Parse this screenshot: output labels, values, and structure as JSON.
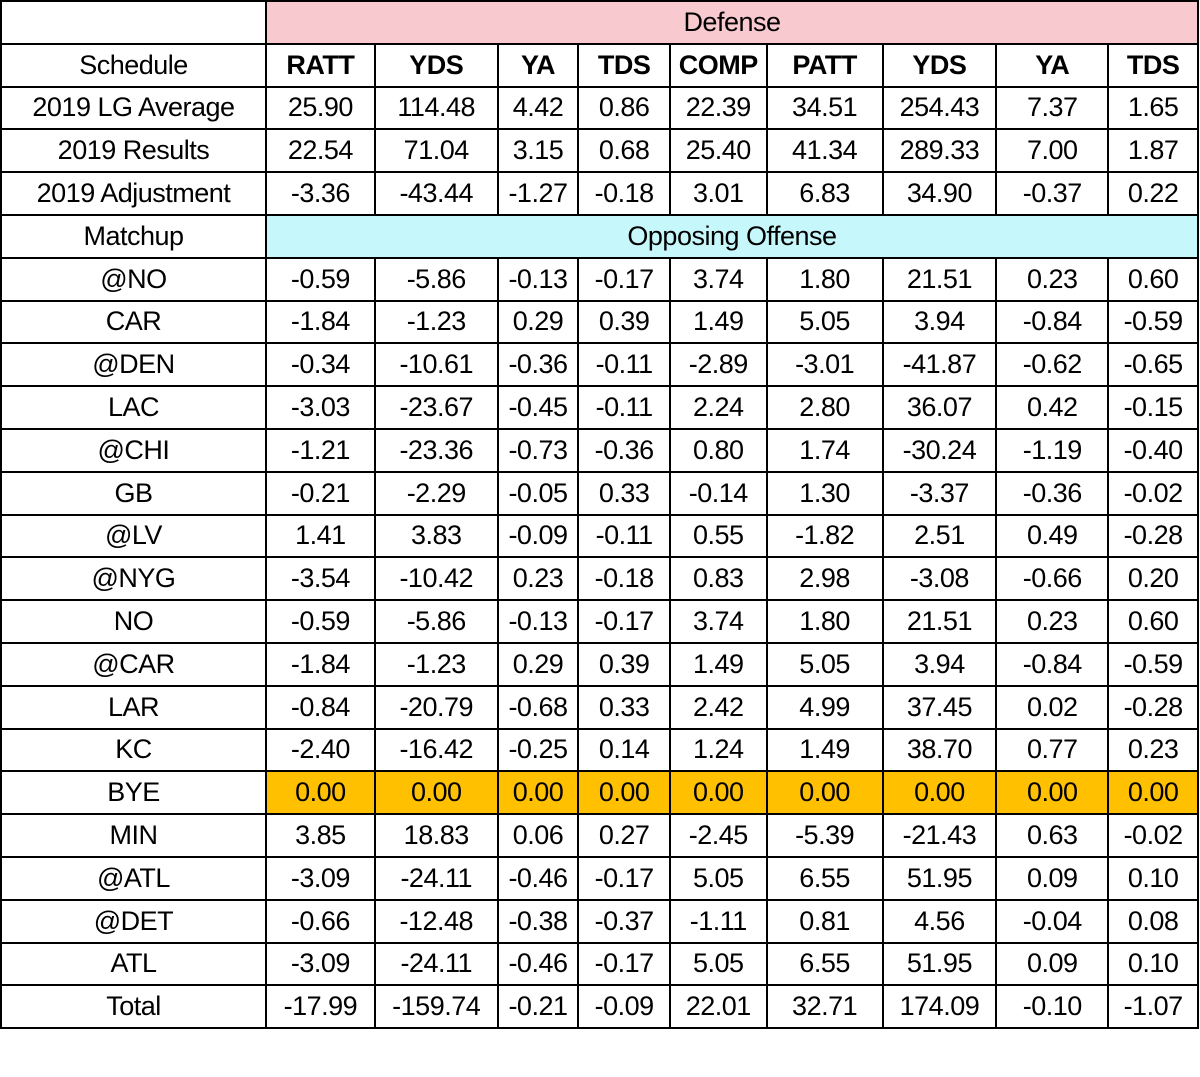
{
  "table": {
    "defense_label": "Defense",
    "offense_label": "Opposing Offense",
    "schedule_label": "Schedule",
    "matchup_label": "Matchup",
    "columns": [
      "RATT",
      "YDS",
      "YA",
      "TDS",
      "COMP",
      "PATT",
      "YDS",
      "YA",
      "TDS"
    ],
    "summary_rows": [
      {
        "label": "2019 LG Average",
        "values": [
          "25.90",
          "114.48",
          "4.42",
          "0.86",
          "22.39",
          "34.51",
          "254.43",
          "7.37",
          "1.65"
        ]
      },
      {
        "label": "2019 Results",
        "values": [
          "22.54",
          "71.04",
          "3.15",
          "0.68",
          "25.40",
          "41.34",
          "289.33",
          "7.00",
          "1.87"
        ]
      },
      {
        "label": "2019 Adjustment",
        "values": [
          "-3.36",
          "-43.44",
          "-1.27",
          "-0.18",
          "3.01",
          "6.83",
          "34.90",
          "-0.37",
          "0.22"
        ]
      }
    ],
    "matchup_rows": [
      {
        "label": "@NO",
        "values": [
          "-0.59",
          "-5.86",
          "-0.13",
          "-0.17",
          "3.74",
          "1.80",
          "21.51",
          "0.23",
          "0.60"
        ]
      },
      {
        "label": "CAR",
        "values": [
          "-1.84",
          "-1.23",
          "0.29",
          "0.39",
          "1.49",
          "5.05",
          "3.94",
          "-0.84",
          "-0.59"
        ]
      },
      {
        "label": "@DEN",
        "values": [
          "-0.34",
          "-10.61",
          "-0.36",
          "-0.11",
          "-2.89",
          "-3.01",
          "-41.87",
          "-0.62",
          "-0.65"
        ]
      },
      {
        "label": "LAC",
        "values": [
          "-3.03",
          "-23.67",
          "-0.45",
          "-0.11",
          "2.24",
          "2.80",
          "36.07",
          "0.42",
          "-0.15"
        ]
      },
      {
        "label": "@CHI",
        "values": [
          "-1.21",
          "-23.36",
          "-0.73",
          "-0.36",
          "0.80",
          "1.74",
          "-30.24",
          "-1.19",
          "-0.40"
        ]
      },
      {
        "label": "GB",
        "values": [
          "-0.21",
          "-2.29",
          "-0.05",
          "0.33",
          "-0.14",
          "1.30",
          "-3.37",
          "-0.36",
          "-0.02"
        ]
      },
      {
        "label": "@LV",
        "values": [
          "1.41",
          "3.83",
          "-0.09",
          "-0.11",
          "0.55",
          "-1.82",
          "2.51",
          "0.49",
          "-0.28"
        ]
      },
      {
        "label": "@NYG",
        "values": [
          "-3.54",
          "-10.42",
          "0.23",
          "-0.18",
          "0.83",
          "2.98",
          "-3.08",
          "-0.66",
          "0.20"
        ]
      },
      {
        "label": "NO",
        "values": [
          "-0.59",
          "-5.86",
          "-0.13",
          "-0.17",
          "3.74",
          "1.80",
          "21.51",
          "0.23",
          "0.60"
        ]
      },
      {
        "label": "@CAR",
        "values": [
          "-1.84",
          "-1.23",
          "0.29",
          "0.39",
          "1.49",
          "5.05",
          "3.94",
          "-0.84",
          "-0.59"
        ]
      },
      {
        "label": "LAR",
        "values": [
          "-0.84",
          "-20.79",
          "-0.68",
          "0.33",
          "2.42",
          "4.99",
          "37.45",
          "0.02",
          "-0.28"
        ]
      },
      {
        "label": "KC",
        "values": [
          "-2.40",
          "-16.42",
          "-0.25",
          "0.14",
          "1.24",
          "1.49",
          "38.70",
          "0.77",
          "0.23"
        ]
      },
      {
        "label": "BYE",
        "values": [
          "0.00",
          "0.00",
          "0.00",
          "0.00",
          "0.00",
          "0.00",
          "0.00",
          "0.00",
          "0.00"
        ]
      },
      {
        "label": "MIN",
        "values": [
          "3.85",
          "18.83",
          "0.06",
          "0.27",
          "-2.45",
          "-5.39",
          "-21.43",
          "0.63",
          "-0.02"
        ]
      },
      {
        "label": "@ATL",
        "values": [
          "-3.09",
          "-24.11",
          "-0.46",
          "-0.17",
          "5.05",
          "6.55",
          "51.95",
          "0.09",
          "0.10"
        ]
      },
      {
        "label": "@DET",
        "values": [
          "-0.66",
          "-12.48",
          "-0.38",
          "-0.37",
          "-1.11",
          "0.81",
          "4.56",
          "-0.04",
          "0.08"
        ]
      },
      {
        "label": "ATL",
        "values": [
          "-3.09",
          "-24.11",
          "-0.46",
          "-0.17",
          "5.05",
          "6.55",
          "51.95",
          "0.09",
          "0.10"
        ]
      }
    ],
    "total_row": {
      "label": "Total",
      "values": [
        "-17.99",
        "-159.74",
        "-0.21",
        "-0.09",
        "22.01",
        "32.71",
        "174.09",
        "-0.10",
        "-1.07"
      ]
    },
    "colors": {
      "defense_band": "#f8c9ce",
      "offense_band": "#c6f7fa",
      "bye_highlight": "#ffc000"
    }
  }
}
